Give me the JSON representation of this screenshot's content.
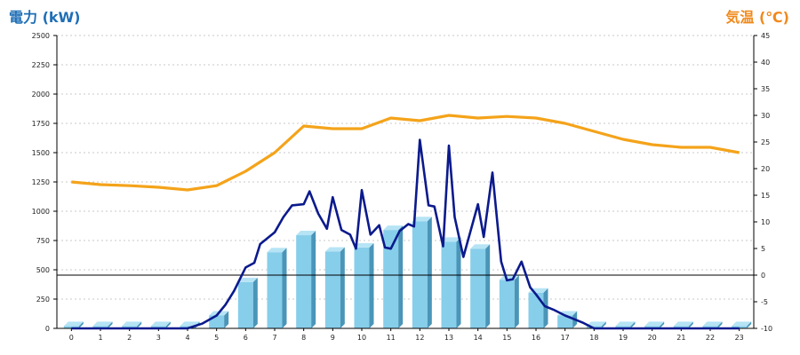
{
  "chart_data": {
    "type": "bar",
    "left_axis_title": "電力 (kW)",
    "right_axis_title": "気温 (℃)",
    "categories": [
      "0",
      "1",
      "2",
      "3",
      "4",
      "5",
      "6",
      "7",
      "8",
      "9",
      "10",
      "11",
      "12",
      "13",
      "14",
      "15",
      "16",
      "17",
      "18",
      "19",
      "20",
      "21",
      "22",
      "23"
    ],
    "y_left": {
      "min": 0,
      "max": 2500,
      "step": 250
    },
    "y_right": {
      "min": -10,
      "max": 45,
      "step": 5
    },
    "grid": true,
    "colors": {
      "bar": "#87ceeb",
      "bar_side": "#4a95b8",
      "bar_top": "#b6e4f5",
      "power_line": "#0b1a8c",
      "temp_line": "#f4a31a",
      "zero_line": "#000000"
    },
    "series": [
      {
        "kind": "bar",
        "axis": "left",
        "values": [
          20,
          20,
          20,
          20,
          20,
          110,
          395,
          650,
          795,
          655,
          690,
          840,
          915,
          740,
          680,
          415,
          305,
          110,
          20,
          20,
          20,
          20,
          20,
          20
        ]
      },
      {
        "kind": "line",
        "axis": "left",
        "x": [
          0,
          1,
          2,
          3,
          4,
          4.5,
          5,
          5.3,
          5.6,
          6,
          6.3,
          6.5,
          7,
          7.3,
          7.6,
          8,
          8.2,
          8.5,
          8.8,
          9,
          9.3,
          9.6,
          9.8,
          10,
          10.3,
          10.6,
          10.8,
          11,
          11.3,
          11.6,
          11.8,
          12,
          12.3,
          12.5,
          12.8,
          13,
          13.2,
          13.5,
          13.7,
          14,
          14.2,
          14.5,
          14.8,
          15,
          15.2,
          15.5,
          15.8,
          16,
          16.3,
          16.6,
          17,
          17.3,
          17.6,
          18,
          19,
          20,
          21,
          22,
          23
        ],
        "values": [
          0,
          0,
          0,
          0,
          0,
          40,
          110,
          200,
          320,
          520,
          560,
          720,
          820,
          950,
          1050,
          1060,
          1170,
          980,
          850,
          1120,
          840,
          800,
          680,
          1180,
          800,
          880,
          690,
          680,
          830,
          890,
          870,
          1610,
          1050,
          1040,
          700,
          1560,
          950,
          610,
          790,
          1060,
          780,
          1330,
          570,
          410,
          420,
          570,
          350,
          290,
          190,
          160,
          110,
          80,
          50,
          0,
          0,
          0,
          0,
          0,
          0
        ]
      },
      {
        "kind": "line",
        "axis": "right",
        "values": [
          17.5,
          17,
          16.8,
          16.5,
          16,
          16.8,
          19.5,
          23,
          28,
          27.5,
          27.5,
          29.5,
          29,
          30,
          29.5,
          29.8,
          29.5,
          28.5,
          27,
          25.5,
          24.5,
          24,
          24,
          23
        ]
      }
    ]
  }
}
